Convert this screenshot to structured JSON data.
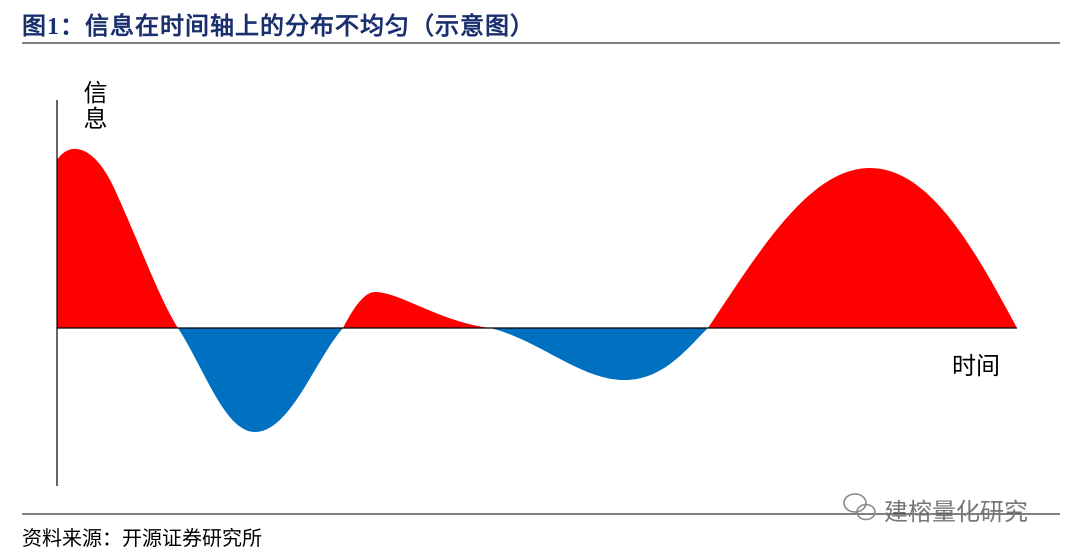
{
  "header": {
    "title": "图1：信息在时间轴上的分布不均匀（示意图）"
  },
  "diagram": {
    "y_axis_label": "信息",
    "x_axis_label": "时间"
  },
  "footer": {
    "source": "资料来源：开源证券研究所",
    "watermark": "建榕量化研究"
  }
}
